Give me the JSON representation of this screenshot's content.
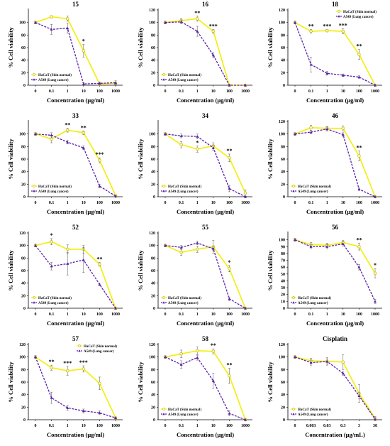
{
  "colors": {
    "hacat": "#f2ee06",
    "hacat_marker_edge": "#c8b400",
    "a549": "#5a1fa8",
    "axis": "#000000"
  },
  "chart_data": [
    {
      "type": "line",
      "title": "15",
      "categories": [
        "0",
        "0.1",
        "1",
        "10",
        "100",
        "1000"
      ],
      "xlabel": "Concentration (μg/ml)",
      "ylabel": "% Cell viability",
      "ylim": [
        0,
        120
      ],
      "yticks": [
        0,
        20,
        40,
        60,
        80,
        100
      ],
      "grid": false,
      "legend_position": "bottom-left",
      "series": [
        {
          "name": "HaCaT (Skin normal)",
          "values": [
            100,
            109,
            106,
            55,
            2,
            3
          ],
          "errors": [
            2,
            2,
            4,
            10,
            2,
            2
          ]
        },
        {
          "name": "A549 (Lung cancer)",
          "values": [
            100,
            89,
            91,
            2,
            3,
            4
          ],
          "errors": [
            2,
            8,
            8,
            2,
            2,
            3
          ]
        }
      ],
      "significance": [
        {
          "index": 3,
          "label": "*"
        }
      ]
    },
    {
      "type": "line",
      "title": "16",
      "categories": [
        "0",
        "0.1",
        "1",
        "10",
        "100",
        "1000"
      ],
      "xlabel": "Concentration (μg/ml)",
      "ylabel": "% Cell viability",
      "ylim": [
        0,
        120
      ],
      "yticks": [
        0,
        20,
        40,
        60,
        80,
        100,
        120
      ],
      "grid": false,
      "legend_position": "bottom-left",
      "series": [
        {
          "name": "HaCaT (Skin normal)",
          "values": [
            100,
            103,
            106,
            86,
            0,
            0
          ],
          "errors": [
            2,
            3,
            4,
            3,
            1,
            1
          ]
        },
        {
          "name": "A549 (Lung cancer)",
          "values": [
            100,
            101,
            86,
            48,
            0,
            0
          ],
          "errors": [
            2,
            3,
            8,
            4,
            1,
            1
          ]
        }
      ],
      "significance": [
        {
          "index": 2,
          "label": "**"
        },
        {
          "index": 3,
          "label": "***"
        }
      ]
    },
    {
      "type": "line",
      "title": "18",
      "categories": [
        "0",
        "0.1",
        "1",
        "10",
        "100",
        "1000"
      ],
      "xlabel": "Concentration (μg/ml)",
      "ylabel": "% Cell viability",
      "ylim": [
        0,
        120
      ],
      "yticks": [
        0,
        20,
        40,
        60,
        80,
        100,
        120
      ],
      "grid": false,
      "legend_position": "top-right",
      "series": [
        {
          "name": "HaCaT (Skin normal)",
          "values": [
            100,
            86,
            87,
            86,
            49,
            0
          ],
          "errors": [
            2,
            3,
            2,
            4,
            8,
            1
          ]
        },
        {
          "name": "A549 (Lung cancer)",
          "values": [
            100,
            33,
            19,
            16,
            13,
            0
          ],
          "errors": [
            2,
            12,
            3,
            2,
            2,
            1
          ]
        }
      ],
      "significance": [
        {
          "index": 1,
          "label": "**"
        },
        {
          "index": 2,
          "label": "***"
        },
        {
          "index": 3,
          "label": "***"
        },
        {
          "index": 4,
          "label": "**"
        }
      ]
    },
    {
      "type": "line",
      "title": "33",
      "categories": [
        "0",
        "0.1",
        "1",
        "10",
        "100",
        "1000"
      ],
      "xlabel": "Concentration (μg/ml)",
      "ylabel": "% Cell viability",
      "ylim": [
        0,
        120
      ],
      "yticks": [
        0,
        20,
        40,
        60,
        80,
        100
      ],
      "grid": false,
      "legend_position": "bottom-left",
      "series": [
        {
          "name": "HaCaT (Skin normal)",
          "values": [
            100,
            92,
            106,
            102,
            58,
            2
          ],
          "errors": [
            2,
            6,
            3,
            3,
            4,
            1
          ]
        },
        {
          "name": "A549 (Lung cancer)",
          "values": [
            100,
            98,
            87,
            78,
            17,
            1
          ],
          "errors": [
            2,
            4,
            3,
            3,
            3,
            1
          ]
        }
      ],
      "significance": [
        {
          "index": 2,
          "label": "**"
        },
        {
          "index": 3,
          "label": "**"
        },
        {
          "index": 4,
          "label": "***"
        }
      ]
    },
    {
      "type": "line",
      "title": "34",
      "categories": [
        "0",
        "0.1",
        "1",
        "10",
        "100",
        "1000"
      ],
      "xlabel": "Concentration (μg/ml)",
      "ylabel": "% Cell viability",
      "ylim": [
        0,
        120
      ],
      "yticks": [
        0,
        20,
        40,
        60,
        80,
        100
      ],
      "grid": false,
      "legend_position": "bottom-left",
      "series": [
        {
          "name": "HaCaT (Skin normal)",
          "values": [
            100,
            83,
            76,
            81,
            62,
            6
          ],
          "errors": [
            2,
            5,
            5,
            5,
            6,
            5
          ]
        },
        {
          "name": "A549 (Lung cancer)",
          "values": [
            100,
            97,
            96,
            78,
            13,
            0
          ],
          "errors": [
            2,
            3,
            4,
            4,
            5,
            1
          ]
        }
      ],
      "significance": [
        {
          "index": 2,
          "label": "*"
        },
        {
          "index": 4,
          "label": "**"
        }
      ]
    },
    {
      "type": "line",
      "title": "46",
      "categories": [
        "0",
        "0.1",
        "1",
        "10",
        "100",
        "1000"
      ],
      "xlabel": "Concentration (μg/ml)",
      "ylabel": "% Cell viability",
      "ylim": [
        0,
        120
      ],
      "yticks": [
        0,
        20,
        40,
        60,
        80,
        100,
        120
      ],
      "grid": false,
      "legend_position": "bottom-left",
      "series": [
        {
          "name": "HaCaT (Skin normal)",
          "values": [
            100,
            110,
            109,
            109,
            65,
            0
          ],
          "errors": [
            2,
            4,
            3,
            4,
            8,
            1
          ]
        },
        {
          "name": "A549 (Lung cancer)",
          "values": [
            100,
            103,
            108,
            99,
            12,
            0
          ],
          "errors": [
            2,
            3,
            3,
            3,
            2,
            1
          ]
        }
      ],
      "significance": [
        {
          "index": 4,
          "label": "**"
        }
      ]
    },
    {
      "type": "line",
      "title": "52",
      "categories": [
        "0",
        "0.1",
        "1",
        "10",
        "100",
        "1000"
      ],
      "xlabel": "Concentration (μg/ml)",
      "ylabel": "% Cell viability",
      "ylim": [
        0,
        120
      ],
      "yticks": [
        0,
        20,
        40,
        60,
        80,
        100,
        120
      ],
      "grid": false,
      "legend_position": "bottom-left",
      "series": [
        {
          "name": "HaCaT (Skin normal)",
          "values": [
            100,
            106,
            94,
            94,
            70,
            0
          ],
          "errors": [
            2,
            5,
            7,
            6,
            3,
            1
          ]
        },
        {
          "name": "A549 (Lung cancer)",
          "values": [
            100,
            67,
            71,
            77,
            38,
            0
          ],
          "errors": [
            2,
            6,
            18,
            20,
            2,
            1
          ]
        }
      ],
      "significance": [
        {
          "index": 1,
          "label": "*"
        },
        {
          "index": 4,
          "label": "**"
        }
      ]
    },
    {
      "type": "line",
      "title": "55",
      "categories": [
        "0",
        "0.1",
        "1",
        "10",
        "100",
        "1000"
      ],
      "xlabel": "Concentration (μg/ml)",
      "ylabel": "% Cell viability",
      "ylim": [
        0,
        120
      ],
      "yticks": [
        0,
        20,
        40,
        60,
        80,
        100,
        120
      ],
      "grid": false,
      "legend_position": "bottom-left",
      "series": [
        {
          "name": "HaCaT (Skin normal)",
          "values": [
            100,
            89,
            94,
            98,
            63,
            0
          ],
          "errors": [
            2,
            5,
            5,
            10,
            5,
            1
          ]
        },
        {
          "name": "A549 (Lung cancer)",
          "values": [
            100,
            97,
            104,
            95,
            15,
            0
          ],
          "errors": [
            2,
            3,
            3,
            3,
            3,
            1
          ]
        }
      ],
      "significance": [
        {
          "index": 4,
          "label": "*"
        }
      ]
    },
    {
      "type": "line",
      "title": "56",
      "categories": [
        "0",
        "0.1",
        "1",
        "10",
        "100",
        "1000"
      ],
      "xlabel": "Concentration (μg/ml)",
      "ylabel": "% Cell viability",
      "ylim": [
        0,
        110
      ],
      "yticks": [
        0,
        10,
        20,
        30,
        40,
        50,
        60,
        70,
        80,
        90,
        100
      ],
      "grid": false,
      "legend_position": "bottom-left",
      "series": [
        {
          "name": "HaCaT (Skin normal)",
          "values": [
            100,
            93,
            92,
            96,
            90,
            51
          ],
          "errors": [
            2,
            3,
            3,
            3,
            5,
            7
          ]
        },
        {
          "name": "A549 (Lung cancer)",
          "values": [
            100,
            90,
            90,
            94,
            60,
            10
          ],
          "errors": [
            2,
            3,
            3,
            3,
            4,
            3
          ]
        }
      ],
      "significance": [
        {
          "index": 4,
          "label": "**"
        },
        {
          "index": 5,
          "label": "*"
        }
      ]
    },
    {
      "type": "line",
      "title": "57",
      "categories": [
        "0",
        "0.1",
        "1",
        "10",
        "100",
        "1000"
      ],
      "xlabel": "Concentration (μg/ml)",
      "ylabel": "% Cell viability",
      "ylim": [
        0,
        120
      ],
      "yticks": [
        0,
        20,
        40,
        60,
        80,
        100,
        120
      ],
      "grid": false,
      "legend_position": "top-right",
      "series": [
        {
          "name": "HaCaT (Skin normal)",
          "values": [
            100,
            83,
            78,
            81,
            58,
            3
          ],
          "errors": [
            2,
            4,
            7,
            5,
            10,
            1
          ]
        },
        {
          "name": "A549 (Lung cancer)",
          "values": [
            100,
            35,
            19,
            14,
            11,
            3
          ],
          "errors": [
            2,
            9,
            4,
            3,
            3,
            1
          ]
        }
      ],
      "significance": [
        {
          "index": 1,
          "label": "**"
        },
        {
          "index": 2,
          "label": "***"
        },
        {
          "index": 3,
          "label": "***"
        }
      ]
    },
    {
      "type": "line",
      "title": "58",
      "categories": [
        "0",
        "0.1",
        "1",
        "10",
        "100",
        "1000"
      ],
      "xlabel": "Concentration (μg/ml)",
      "ylabel": "% Cell viability",
      "ylim": [
        0,
        120
      ],
      "yticks": [
        0,
        20,
        40,
        60,
        80,
        100,
        120
      ],
      "grid": false,
      "legend_position": "bottom-left",
      "series": [
        {
          "name": "HaCaT (Skin normal)",
          "values": [
            100,
            105,
            110,
            109,
            70,
            0
          ],
          "errors": [
            2,
            6,
            6,
            4,
            12,
            1
          ]
        },
        {
          "name": "A549 (Lung cancer)",
          "values": [
            100,
            88,
            99,
            62,
            10,
            0
          ],
          "errors": [
            2,
            6,
            4,
            12,
            4,
            1
          ]
        }
      ],
      "significance": [
        {
          "index": 3,
          "label": "**"
        },
        {
          "index": 4,
          "label": "**"
        }
      ]
    },
    {
      "type": "line",
      "title": "Cisplatin",
      "categories": [
        "0",
        "0.003",
        "0.03",
        "0.3",
        "3",
        "30"
      ],
      "xlabel": "Concentration (μg/mL)",
      "ylabel": "% Cell viability",
      "ylim": [
        0,
        120
      ],
      "yticks": [
        0,
        20,
        40,
        60,
        80,
        100,
        120
      ],
      "grid": false,
      "legend_position": "bottom-left",
      "series": [
        {
          "name": "HaCaT (Skin normal)",
          "values": [
            100,
            94,
            93,
            92,
            42,
            2
          ],
          "errors": [
            2,
            4,
            6,
            12,
            14,
            3
          ]
        },
        {
          "name": "A549 (Lung cancer)",
          "values": [
            100,
            91,
            93,
            74,
            38,
            1
          ],
          "errors": [
            2,
            4,
            4,
            3,
            5,
            2
          ]
        }
      ],
      "significance": []
    }
  ]
}
